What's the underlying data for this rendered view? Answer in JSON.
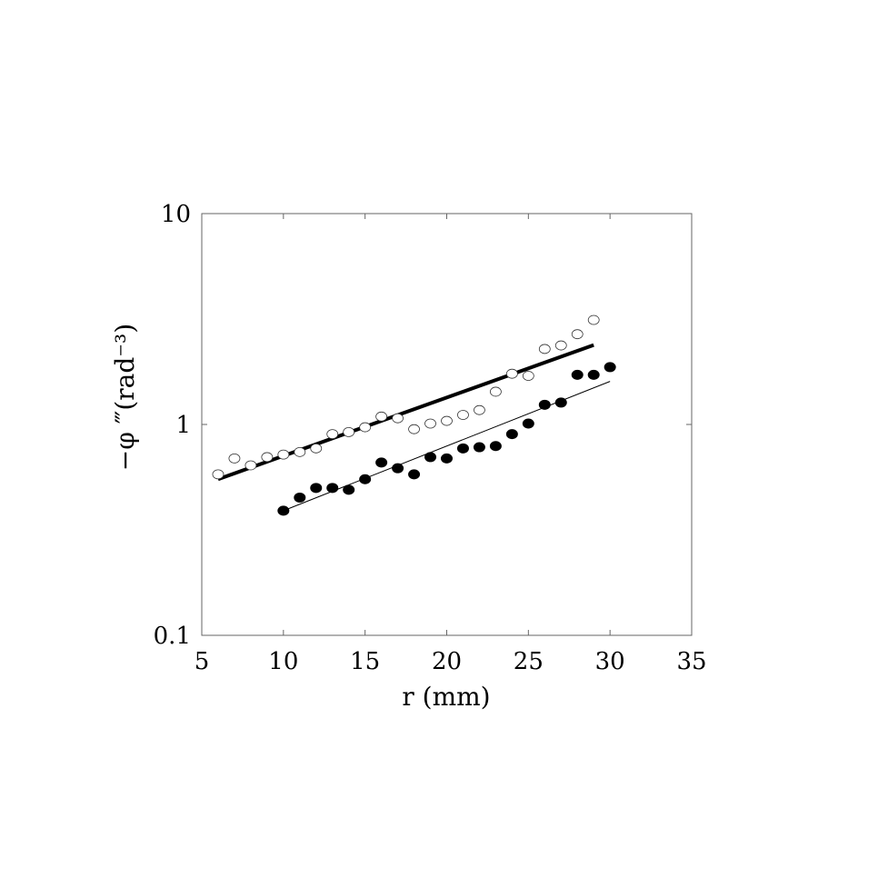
{
  "chart_data": {
    "type": "scatter",
    "xlabel": "r (mm)",
    "ylabel": "−φ ‴(rad⁻³)",
    "xlim": [
      5,
      35
    ],
    "ylim": [
      0.1,
      10
    ],
    "yscale": "log",
    "xticks": [
      "5",
      "10",
      "15",
      "20",
      "25",
      "30",
      "35"
    ],
    "yticks": [
      "0.1",
      "1",
      "10"
    ],
    "grid": false,
    "series": [
      {
        "marker": "open-circle",
        "x": [
          6,
          7,
          8,
          9,
          10,
          11,
          12,
          13,
          14,
          15,
          16,
          17,
          18,
          19,
          20,
          21,
          22,
          23,
          24,
          25,
          26,
          27,
          28,
          29
        ],
        "y": [
          0.58,
          0.69,
          0.64,
          0.7,
          0.72,
          0.74,
          0.77,
          0.9,
          0.92,
          0.97,
          1.09,
          1.07,
          0.95,
          1.01,
          1.04,
          1.11,
          1.17,
          1.43,
          1.74,
          1.7,
          2.28,
          2.37,
          2.68,
          3.13
        ]
      },
      {
        "marker": "filled-circle",
        "x": [
          10,
          11,
          12,
          13,
          14,
          15,
          16,
          17,
          18,
          19,
          20,
          21,
          22,
          23,
          24,
          25,
          26,
          27,
          28,
          29,
          30
        ],
        "y": [
          0.39,
          0.45,
          0.5,
          0.5,
          0.49,
          0.55,
          0.66,
          0.62,
          0.58,
          0.7,
          0.69,
          0.77,
          0.78,
          0.79,
          0.9,
          1.01,
          1.24,
          1.27,
          1.72,
          1.72,
          1.87
        ]
      }
    ],
    "fit_lines": [
      {
        "style": "thick",
        "x": [
          6,
          29
        ],
        "y": [
          0.55,
          2.38
        ]
      },
      {
        "style": "thin",
        "x": [
          10,
          30
        ],
        "y": [
          0.39,
          1.6
        ]
      }
    ]
  }
}
